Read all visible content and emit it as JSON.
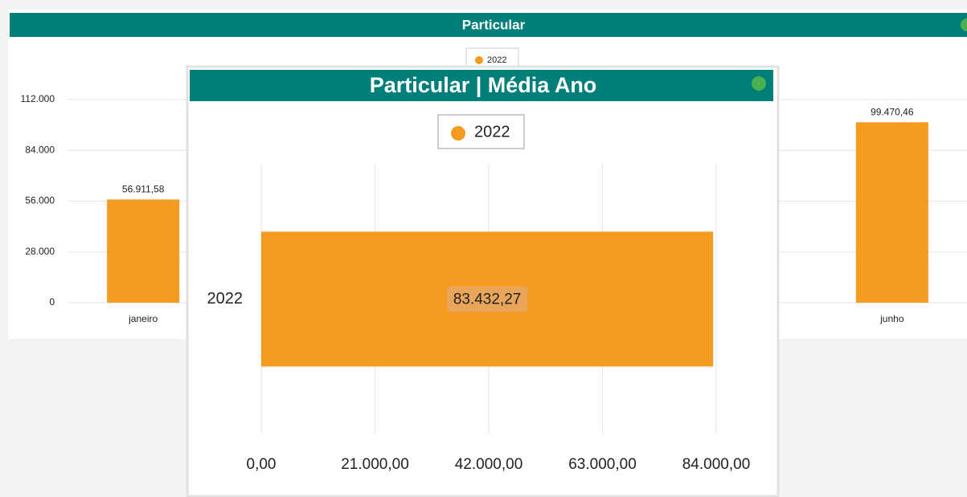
{
  "chart_data": [
    {
      "type": "bar",
      "title": "Particular",
      "categories": [
        "janeiro",
        null,
        null,
        null,
        null,
        "junho"
      ],
      "series": [
        {
          "name": "2022",
          "color": "#f59b1f",
          "values": [
            56911.58,
            null,
            null,
            null,
            null,
            99470.46
          ],
          "value_labels": [
            "56.911,58",
            null,
            null,
            null,
            null,
            "99.470,46"
          ]
        }
      ],
      "ylim": [
        0,
        112000
      ],
      "yticks": [
        0,
        {
          "value": 28000,
          "label": "28.000"
        },
        {
          "value": 56000,
          "label": "56.000"
        },
        {
          "value": 84000,
          "label": "84.000"
        },
        {
          "value": 112000,
          "label": "112.000"
        }
      ],
      "grid": true
    },
    {
      "type": "bar",
      "horizontal": true,
      "title": "Particular | Média Ano",
      "categories": [
        "2022"
      ],
      "series": [
        {
          "name": "2022",
          "color": "#f59b1f",
          "values": [
            83432.27
          ],
          "value_labels": [
            "83.432,27"
          ]
        }
      ],
      "xlim": [
        0,
        84000
      ],
      "xticks": [
        {
          "value": 0,
          "label": "0,00"
        },
        {
          "value": 21000,
          "label": "21.000,00"
        },
        {
          "value": 42000,
          "label": "42.000,00"
        },
        {
          "value": 63000,
          "label": "63.000,00"
        },
        {
          "value": 84000,
          "label": "84.000,00"
        }
      ],
      "grid": true
    }
  ]
}
